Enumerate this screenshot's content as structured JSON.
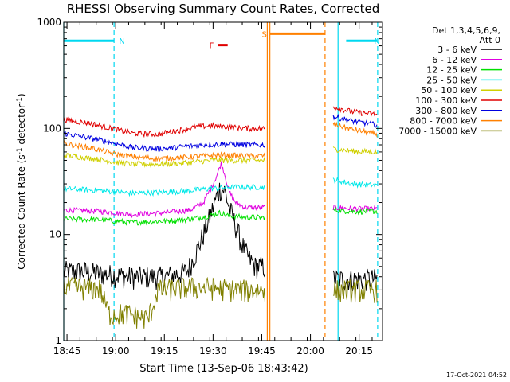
{
  "chart_data": {
    "type": "line",
    "title": "RHESSI Observing Summary Count Rates, Corrected",
    "xlabel": "Start Time (13-Sep-06 18:43:42)",
    "ylabel_main": "Corrected Count Rate (s",
    "ylabel_sup1": "-1",
    "ylabel_mid": " detector",
    "ylabel_sup2": "-1",
    "ylabel_end": ")",
    "yscale": "log",
    "ylim": [
      1,
      1000
    ],
    "xlim_minutes": [
      -1.0,
      97.2
    ],
    "xticks": [
      {
        "label": "18:45",
        "minute": 0
      },
      {
        "label": "19:00",
        "minute": 15
      },
      {
        "label": "19:15",
        "minute": 30
      },
      {
        "label": "19:30",
        "minute": 45
      },
      {
        "label": "19:45",
        "minute": 60
      },
      {
        "label": "20:00",
        "minute": 75
      },
      {
        "label": "20:15",
        "minute": 90
      }
    ],
    "yticks": [
      {
        "label": "1",
        "value": 1
      },
      {
        "label": "10",
        "value": 10
      },
      {
        "label": "100",
        "value": 100
      },
      {
        "label": "1000",
        "value": 1000
      }
    ],
    "legend": {
      "header1": "Det 1,3,4,5,6,9,",
      "header2": "Att 0",
      "placement": "right",
      "entries": [
        {
          "label": "3 - 6 keV",
          "color": "#000000"
        },
        {
          "label": "6 - 12 keV",
          "color": "#e000e0"
        },
        {
          "label": "12 - 25 keV",
          "color": "#00e000"
        },
        {
          "label": "25 - 50 keV",
          "color": "#00e8e8"
        },
        {
          "label": "50 - 100 keV",
          "color": "#d0d000"
        },
        {
          "label": "100 - 300 keV",
          "color": "#e00000"
        },
        {
          "label": "300 - 800 keV",
          "color": "#0000e0"
        },
        {
          "label": "800 - 7000 keV",
          "color": "#ff8000"
        },
        {
          "label": "7000 - 15000 keV",
          "color": "#808000"
        }
      ]
    },
    "segments": [
      [
        -1.0,
        61.0
      ],
      [
        82.0,
        95.5
      ]
    ],
    "series": [
      {
        "name": "3 - 6 keV",
        "color": "#000000",
        "points": [
          [
            -1,
            4.5
          ],
          [
            5,
            4.5
          ],
          [
            10,
            4.3
          ],
          [
            20,
            4.0
          ],
          [
            30,
            4.0
          ],
          [
            37,
            4.5
          ],
          [
            40,
            7
          ],
          [
            43,
            12
          ],
          [
            45,
            18
          ],
          [
            47,
            27
          ],
          [
            48.5,
            26
          ],
          [
            50,
            18
          ],
          [
            52,
            12
          ],
          [
            54,
            8
          ],
          [
            56,
            6
          ],
          [
            58,
            5
          ],
          [
            61,
            5
          ],
          [
            82,
            3.8
          ],
          [
            88,
            3.8
          ],
          [
            95.5,
            3.8
          ]
        ]
      },
      {
        "name": "6 - 12 keV",
        "color": "#e000e0",
        "points": [
          [
            -1,
            17
          ],
          [
            10,
            16.5
          ],
          [
            20,
            15.5
          ],
          [
            30,
            16
          ],
          [
            38,
            17
          ],
          [
            42,
            20
          ],
          [
            44,
            26
          ],
          [
            46,
            35
          ],
          [
            47.5,
            47
          ],
          [
            48.5,
            38
          ],
          [
            50,
            25
          ],
          [
            52,
            20
          ],
          [
            55,
            18
          ],
          [
            59,
            18
          ],
          [
            61,
            18
          ],
          [
            82,
            18
          ],
          [
            88,
            17.5
          ],
          [
            95.5,
            17.5
          ]
        ]
      },
      {
        "name": "12 - 25 keV",
        "color": "#00e000",
        "points": [
          [
            -1,
            14
          ],
          [
            10,
            13.8
          ],
          [
            20,
            13
          ],
          [
            30,
            13.4
          ],
          [
            38,
            14
          ],
          [
            44,
            15
          ],
          [
            47,
            16
          ],
          [
            50,
            15
          ],
          [
            55,
            14.5
          ],
          [
            61,
            14.5
          ],
          [
            82,
            17
          ],
          [
            88,
            16.5
          ],
          [
            95.5,
            16.5
          ]
        ]
      },
      {
        "name": "25 - 50 keV",
        "color": "#00e8e8",
        "points": [
          [
            -1,
            27
          ],
          [
            10,
            26
          ],
          [
            20,
            24.5
          ],
          [
            30,
            25
          ],
          [
            38,
            26
          ],
          [
            44,
            27
          ],
          [
            50,
            28
          ],
          [
            55,
            28
          ],
          [
            61,
            28
          ],
          [
            82,
            33
          ],
          [
            88,
            30
          ],
          [
            95.5,
            29
          ]
        ]
      },
      {
        "name": "50 - 100 keV",
        "color": "#d0d000",
        "points": [
          [
            -1,
            56
          ],
          [
            8,
            52
          ],
          [
            15,
            48
          ],
          [
            20,
            46
          ],
          [
            30,
            46
          ],
          [
            38,
            48
          ],
          [
            45,
            50
          ],
          [
            52,
            50
          ],
          [
            61,
            50
          ],
          [
            82,
            64
          ],
          [
            88,
            61
          ],
          [
            95.5,
            60
          ]
        ]
      },
      {
        "name": "100 - 300 keV",
        "color": "#e00000",
        "points": [
          [
            -1,
            122
          ],
          [
            8,
            110
          ],
          [
            15,
            98
          ],
          [
            20,
            90
          ],
          [
            28,
            88
          ],
          [
            34,
            95
          ],
          [
            40,
            104
          ],
          [
            45,
            106
          ],
          [
            50,
            103
          ],
          [
            56,
            100
          ],
          [
            61,
            100
          ],
          [
            82,
            160
          ],
          [
            88,
            143
          ],
          [
            95.5,
            135
          ]
        ]
      },
      {
        "name": "300 - 800 keV",
        "color": "#0000e0",
        "points": [
          [
            -1,
            90
          ],
          [
            8,
            80
          ],
          [
            15,
            72
          ],
          [
            20,
            66
          ],
          [
            28,
            64
          ],
          [
            35,
            67
          ],
          [
            42,
            70
          ],
          [
            48,
            71
          ],
          [
            55,
            70
          ],
          [
            61,
            70
          ],
          [
            82,
            130
          ],
          [
            88,
            117
          ],
          [
            95.5,
            108
          ]
        ]
      },
      {
        "name": "800 - 7000 keV",
        "color": "#ff8000",
        "points": [
          [
            -1,
            72
          ],
          [
            8,
            65
          ],
          [
            15,
            57
          ],
          [
            20,
            54
          ],
          [
            28,
            52
          ],
          [
            35,
            53
          ],
          [
            42,
            55
          ],
          [
            48,
            56
          ],
          [
            55,
            55
          ],
          [
            61,
            55
          ],
          [
            82,
            110
          ],
          [
            88,
            98
          ],
          [
            95.5,
            88
          ]
        ]
      },
      {
        "name": "7000 - 15000 keV",
        "color": "#808000",
        "points": [
          [
            -1,
            3.2
          ],
          [
            10,
            3.1
          ],
          [
            13,
            1.8
          ],
          [
            18,
            1.8
          ],
          [
            25,
            1.6
          ],
          [
            28,
            3.0
          ],
          [
            40,
            3.2
          ],
          [
            55,
            3.0
          ],
          [
            61,
            3.0
          ],
          [
            82,
            3.0
          ],
          [
            95.5,
            3.0
          ]
        ]
      }
    ],
    "flags": [
      {
        "label": "N",
        "color": "#00d8f0",
        "x1": -1,
        "x2": 14.5,
        "y": 670
      },
      {
        "label": "N",
        "color": "#00d8f0",
        "x1": 86,
        "x2": 95.5,
        "y": 670
      },
      {
        "label": "F",
        "color": "#e00000",
        "x1": 46.5,
        "x2": 49.5,
        "y": 610
      },
      {
        "label": "S",
        "color": "#ff8000",
        "x1": 62.5,
        "x2": 79.5,
        "y": 780
      }
    ],
    "vlines": [
      {
        "minute": -1.0,
        "color": "#00d8f0",
        "dashed": false
      },
      {
        "minute": 14.5,
        "color": "#00d8f0",
        "dashed": true
      },
      {
        "minute": 61.7,
        "color": "#ff8000",
        "dashed": false
      },
      {
        "minute": 62.5,
        "color": "#ff8000",
        "dashed": false
      },
      {
        "minute": 79.5,
        "color": "#ff8000",
        "dashed": true
      },
      {
        "minute": 83.5,
        "color": "#00d8f0",
        "dashed": false
      },
      {
        "minute": 95.7,
        "color": "#00d8f0",
        "dashed": true
      }
    ]
  },
  "footer": {
    "date_stamp": "17-Oct-2021 04:52"
  }
}
